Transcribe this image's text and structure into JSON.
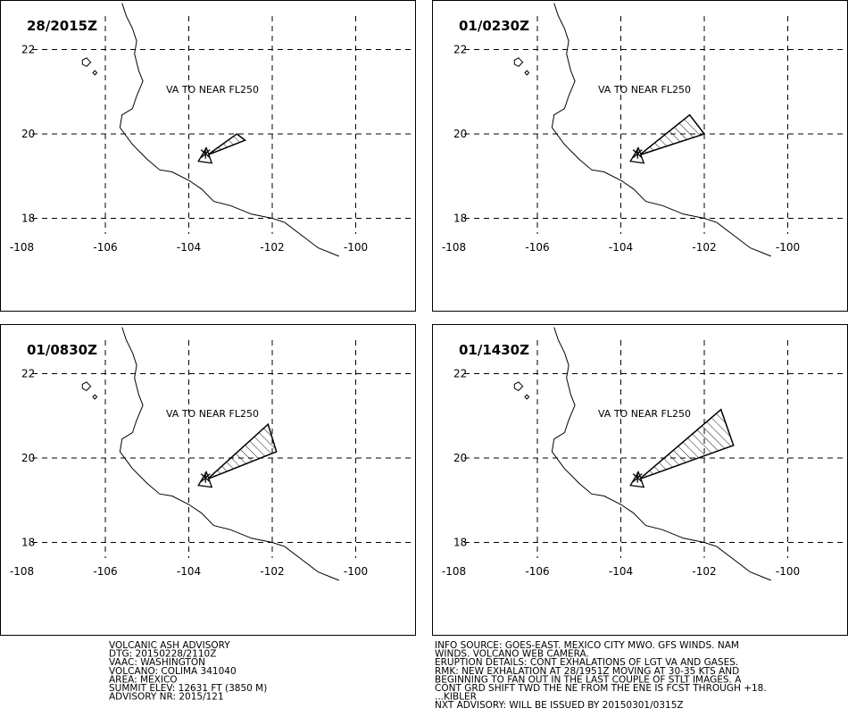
{
  "panels": [
    {
      "time": "28/2015Z",
      "label": "VA TO NEAR FL250",
      "plume": [
        [
          -103.55,
          19.5
        ],
        [
          -102.85,
          20.0
        ],
        [
          -102.65,
          19.85
        ]
      ]
    },
    {
      "time": "01/0230Z",
      "label": "VA TO NEAR FL250",
      "plume": [
        [
          -103.55,
          19.5
        ],
        [
          -102.35,
          20.45
        ],
        [
          -102.0,
          20.0
        ]
      ]
    },
    {
      "time": "01/0830Z",
      "label": "VA TO NEAR FL250",
      "plume": [
        [
          -103.55,
          19.5
        ],
        [
          -102.1,
          20.8
        ],
        [
          -101.9,
          20.15
        ]
      ]
    },
    {
      "time": "01/1430Z",
      "label": "VA TO NEAR FL250",
      "plume": [
        [
          -103.55,
          19.5
        ],
        [
          -101.6,
          21.15
        ],
        [
          -101.3,
          20.3
        ]
      ]
    }
  ],
  "map": {
    "lon_ticks": [
      -108,
      -106,
      -104,
      -102,
      -100
    ],
    "lat_ticks": [
      22,
      20,
      18
    ],
    "lon_labels": [
      "-108",
      "-106",
      "-104",
      "-102",
      "-100"
    ],
    "lat_labels": [
      "22",
      "20",
      "18"
    ],
    "volcano": [
      -103.6,
      19.5
    ],
    "coast": [
      [
        -105.6,
        23.1
      ],
      [
        -105.5,
        22.8
      ],
      [
        -105.35,
        22.5
      ],
      [
        -105.25,
        22.2
      ],
      [
        -105.3,
        21.9
      ],
      [
        -105.2,
        21.5
      ],
      [
        -105.1,
        21.25
      ],
      [
        -105.25,
        20.9
      ],
      [
        -105.35,
        20.6
      ],
      [
        -105.6,
        20.45
      ],
      [
        -105.65,
        20.15
      ],
      [
        -105.35,
        19.75
      ],
      [
        -105.0,
        19.4
      ],
      [
        -104.7,
        19.15
      ],
      [
        -104.4,
        19.1
      ],
      [
        -104.0,
        18.9
      ],
      [
        -103.7,
        18.7
      ],
      [
        -103.4,
        18.4
      ],
      [
        -103.0,
        18.3
      ],
      [
        -102.5,
        18.1
      ],
      [
        -102.0,
        18.0
      ],
      [
        -101.7,
        17.9
      ],
      [
        -101.3,
        17.6
      ],
      [
        -100.9,
        17.3
      ],
      [
        -100.4,
        17.1
      ]
    ],
    "islands": [
      [
        [
          -106.55,
          21.75
        ],
        [
          -106.45,
          21.8
        ],
        [
          -106.35,
          21.7
        ],
        [
          -106.45,
          21.6
        ],
        [
          -106.55,
          21.65
        ]
      ],
      [
        [
          -106.3,
          21.45
        ],
        [
          -106.25,
          21.5
        ],
        [
          -106.2,
          21.45
        ],
        [
          -106.25,
          21.4
        ]
      ]
    ]
  },
  "advisory_left": [
    "VOLCANIC ASH ADVISORY",
    "DTG: 20150228/2110Z",
    "VAAC: WASHINGTON",
    "VOLCANO: COLIMA 341040",
    "AREA: MEXICO",
    "SUMMIT ELEV: 12631 FT (3850 M)",
    "ADVISORY NR: 2015/121"
  ],
  "advisory_right": [
    "INFO SOURCE: GOES-EAST. MEXICO CITY MWO. GFS WINDS. NAM",
    "WINDS. VOLCANO WEB CAMERA.",
    "ERUPTION DETAILS: CONT EXHALATIONS OF LGT VA AND GASES.",
    "RMK: NEW EXHALATION AT 28/1951Z MOVING AT 30-35 KTS AND",
    "BEGINNING TO FAN OUT IN THE LAST COUPLE OF STLT IMAGES. A",
    "CONT GRD SHIFT TWD THE NE FROM THE ENE IS FCST THROUGH +18.",
    "...KIBLER",
    "NXT ADVISORY: WILL BE ISSUED BY 20150301/0315Z"
  ]
}
